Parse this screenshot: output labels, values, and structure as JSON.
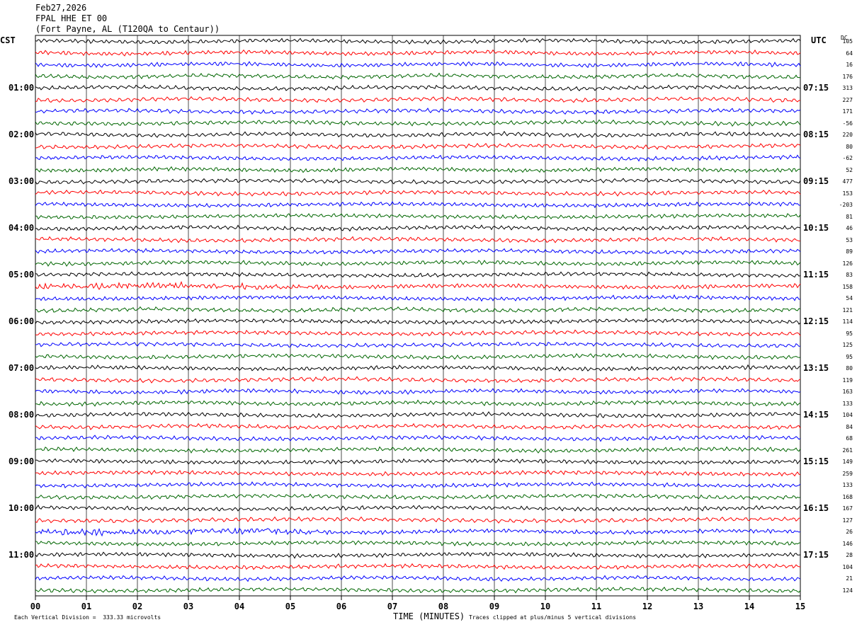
{
  "header": {
    "date": "Feb27,2026",
    "station": "FPAL HHE ET 00",
    "location": "(Fort Payne, AL (T120QA to Centaur))"
  },
  "left_axis": {
    "title": "CST",
    "labels": [
      "01:00",
      "02:00",
      "03:00",
      "04:00",
      "05:00",
      "06:00",
      "07:00",
      "08:00",
      "09:00",
      "10:00",
      "11:00"
    ]
  },
  "right_axis": {
    "title": "UTC",
    "labels": [
      "07:15",
      "08:15",
      "09:15",
      "10:15",
      "11:15",
      "12:15",
      "13:15",
      "14:15",
      "15:15",
      "16:15",
      "17:15"
    ]
  },
  "dc_title": "DC",
  "footer": {
    "scale": "Each Vertical Division =  333.33 microvolts",
    "xlabel": "TIME (MINUTES)",
    "clip_note": "Traces clipped at plus/minus 5 vertical divisions"
  },
  "chart_data": {
    "type": "line",
    "title": "",
    "xlabel": "TIME (MINUTES)",
    "ylabel": "",
    "xlim": [
      0,
      15
    ],
    "x_ticks": [
      "00",
      "01",
      "02",
      "03",
      "04",
      "05",
      "06",
      "07",
      "08",
      "09",
      "10",
      "11",
      "12",
      "13",
      "14",
      "15"
    ],
    "trace_count": 48,
    "minutes_per_trace": 15,
    "trace_colors": [
      "#000000",
      "#ff0000",
      "#0000ff",
      "#006600"
    ],
    "dc_offsets": [
      105,
      64,
      16,
      176,
      313,
      227,
      171,
      -56,
      220,
      80,
      -62,
      52,
      477,
      153,
      -203,
      81,
      46,
      53,
      89,
      126,
      83,
      158,
      54,
      121,
      114,
      95,
      125,
      95,
      80,
      119,
      163,
      133,
      104,
      84,
      68,
      261,
      149,
      259,
      133,
      168,
      167,
      127,
      26,
      146,
      28,
      104,
      21,
      124
    ],
    "noisy_traces": [
      21,
      42
    ],
    "grid": true
  }
}
